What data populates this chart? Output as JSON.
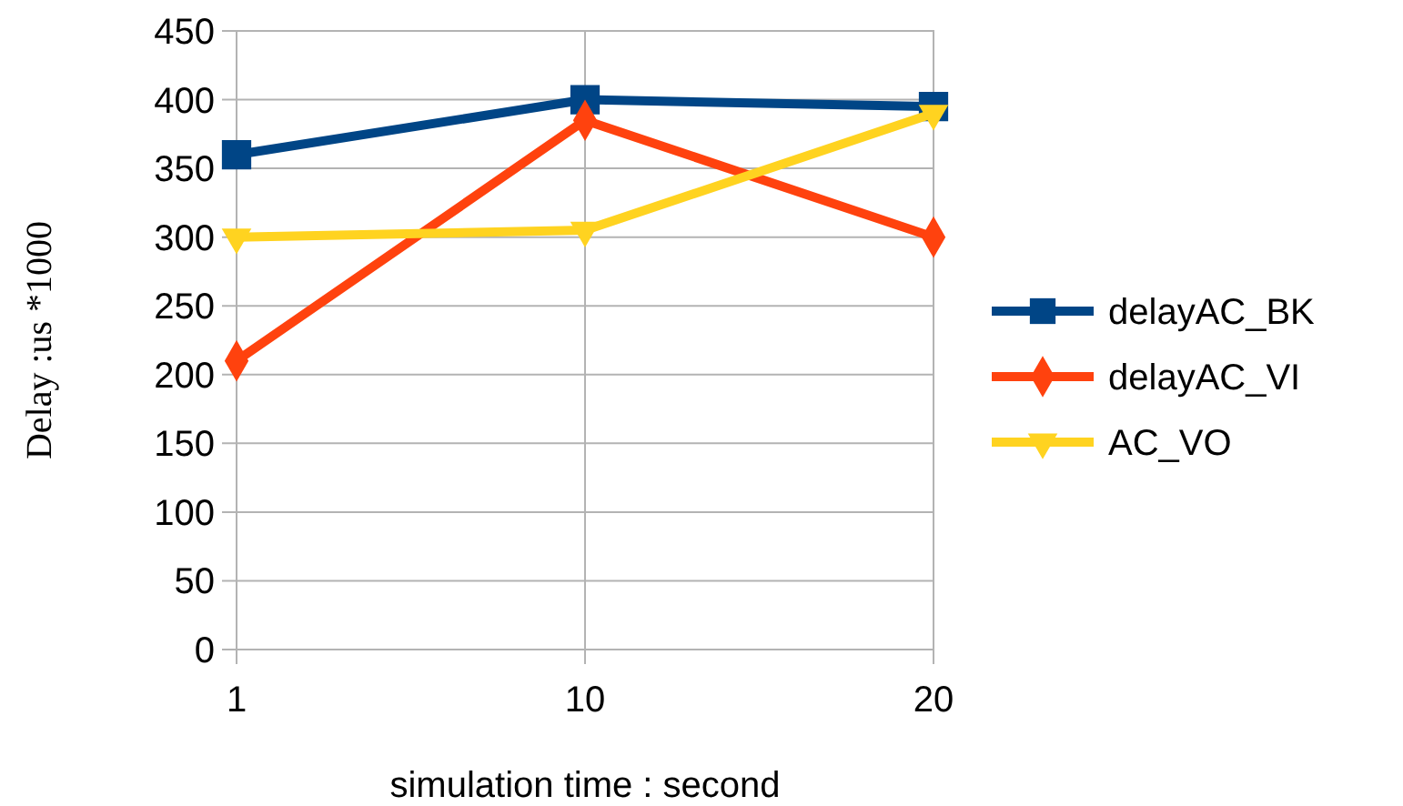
{
  "chart_data": {
    "type": "line",
    "xlabel": "simulation time : second",
    "ylabel": "Delay :us *1000",
    "categories": [
      "1",
      "10",
      "20"
    ],
    "series": [
      {
        "name": "delayAC_BK",
        "color": "#004586",
        "marker": "square",
        "values": [
          360,
          400,
          395
        ]
      },
      {
        "name": "delayAC_VI",
        "color": "#ff420e",
        "marker": "diamond",
        "values": [
          210,
          385,
          300
        ]
      },
      {
        "name": "AC_VO",
        "color": "#ffd320",
        "marker": "triangle",
        "values": [
          300,
          305,
          390
        ]
      }
    ],
    "ylim": [
      0,
      450
    ],
    "yticks": [
      0,
      50,
      100,
      150,
      200,
      250,
      300,
      350,
      400,
      450
    ],
    "grid": true,
    "legend": "right"
  }
}
